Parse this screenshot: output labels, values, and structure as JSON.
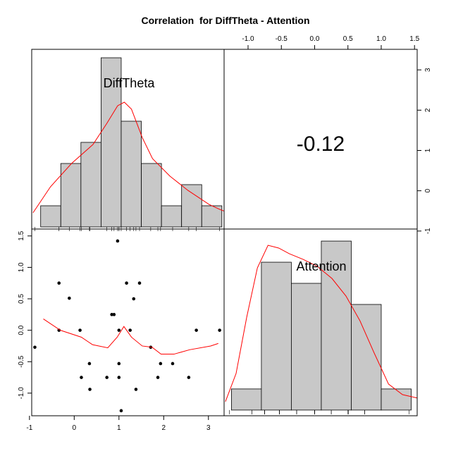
{
  "chart_data": {
    "type": "pairs",
    "title": "Correlation  for DiffTheta - Attention",
    "variables": [
      "DiffTheta",
      "Attention"
    ],
    "x": [
      -0.88,
      -0.34,
      -0.34,
      -0.11,
      0.13,
      0.16,
      0.35,
      0.34,
      0.73,
      0.84,
      0.89,
      0.97,
      1.0,
      1.0,
      1.0,
      1.05,
      1.17,
      1.25,
      1.33,
      1.38,
      1.46,
      1.71,
      1.87,
      1.93,
      2.2,
      2.56,
      2.73,
      3.25
    ],
    "y": [
      -0.27,
      0.75,
      0.0,
      0.51,
      0.0,
      -0.75,
      -0.94,
      -0.53,
      -0.75,
      0.25,
      0.25,
      1.42,
      0.0,
      -0.53,
      -0.75,
      -1.28,
      0.75,
      0.0,
      0.5,
      -0.94,
      0.75,
      -0.27,
      -0.75,
      -0.53,
      -0.53,
      -0.75,
      0.0,
      0.0
    ],
    "correlation": -0.12,
    "point_color": "#000000",
    "smooth_color": "#ff0000",
    "bar_color": "#c8c8c8",
    "smooth": {
      "x": [
        -0.69,
        -0.31,
        0.16,
        0.41,
        0.75,
        0.96,
        1.11,
        1.28,
        1.52,
        1.74,
        1.94,
        2.23,
        2.58,
        3.05,
        3.22
      ],
      "y": [
        0.18,
        0.0,
        -0.11,
        -0.23,
        -0.28,
        -0.11,
        0.06,
        -0.11,
        -0.25,
        -0.27,
        -0.38,
        -0.38,
        -0.31,
        -0.25,
        -0.21
      ]
    },
    "hist1": {
      "bins": [
        -0.75,
        -0.3,
        0.15,
        0.6,
        1.05,
        1.5,
        1.95,
        2.4,
        2.85,
        3.3
      ],
      "counts": [
        1,
        3,
        4,
        8,
        5,
        3,
        1,
        2,
        1
      ],
      "density_x": [
        -0.92,
        -0.53,
        -0.06,
        0.42,
        0.73,
        0.97,
        1.12,
        1.28,
        1.52,
        1.75,
        2.14,
        2.54,
        3.01,
        3.25,
        3.35
      ],
      "density_y": [
        0.67,
        1.9,
        3.0,
        3.9,
        4.9,
        5.73,
        5.9,
        5.57,
        4.23,
        3.23,
        2.4,
        1.73,
        1.07,
        0.83,
        0.75
      ],
      "ylim": [
        -0.1,
        8.4
      ]
    },
    "hist2": {
      "bins": [
        -1.25,
        -0.8,
        -0.35,
        0.1,
        0.55,
        1.0,
        1.45
      ],
      "counts": [
        1,
        7,
        6,
        8,
        5,
        1
      ],
      "density_x": [
        -1.34,
        -1.18,
        -1.02,
        -0.86,
        -0.7,
        -0.54,
        -0.38,
        -0.17,
        0.04,
        0.26,
        0.47,
        0.68,
        0.89,
        1.11,
        1.32,
        1.54
      ],
      "density_y": [
        0.4,
        1.73,
        4.4,
        6.73,
        7.8,
        7.67,
        7.4,
        7.13,
        6.8,
        6.23,
        5.4,
        4.23,
        2.73,
        1.23,
        0.73,
        0.57
      ],
      "ylim": [
        -0.27,
        8.57
      ]
    },
    "xlim": [
      -0.95,
      3.35
    ],
    "xticks": [
      -1,
      0,
      1,
      2,
      3
    ],
    "ylim": [
      -1.36,
      1.61
    ],
    "yticks": [
      {
        "value": 1.5,
        "label": "1.5"
      },
      {
        "value": 1,
        "label": "1.0"
      },
      {
        "value": 0.5,
        "label": "0.5"
      },
      {
        "value": 0,
        "label": "0.0"
      },
      {
        "value": -0.5,
        "label": "-0.5"
      },
      {
        "value": -1,
        "label": "-1.0"
      }
    ],
    "x2lim": [
      -1.36,
      1.54
    ],
    "x2ticks": [
      {
        "value": -1,
        "label": "-1.0"
      },
      {
        "value": -0.5,
        "label": "-0.5"
      },
      {
        "value": 0,
        "label": "0.0"
      },
      {
        "value": 0.5,
        "label": "0.5"
      },
      {
        "value": 1,
        "label": "1.0"
      },
      {
        "value": 1.5,
        "label": "1.5"
      }
    ],
    "y2lim": [
      -0.95,
      3.51
    ],
    "y2ticks": [
      3,
      2,
      1,
      0,
      -1
    ]
  }
}
